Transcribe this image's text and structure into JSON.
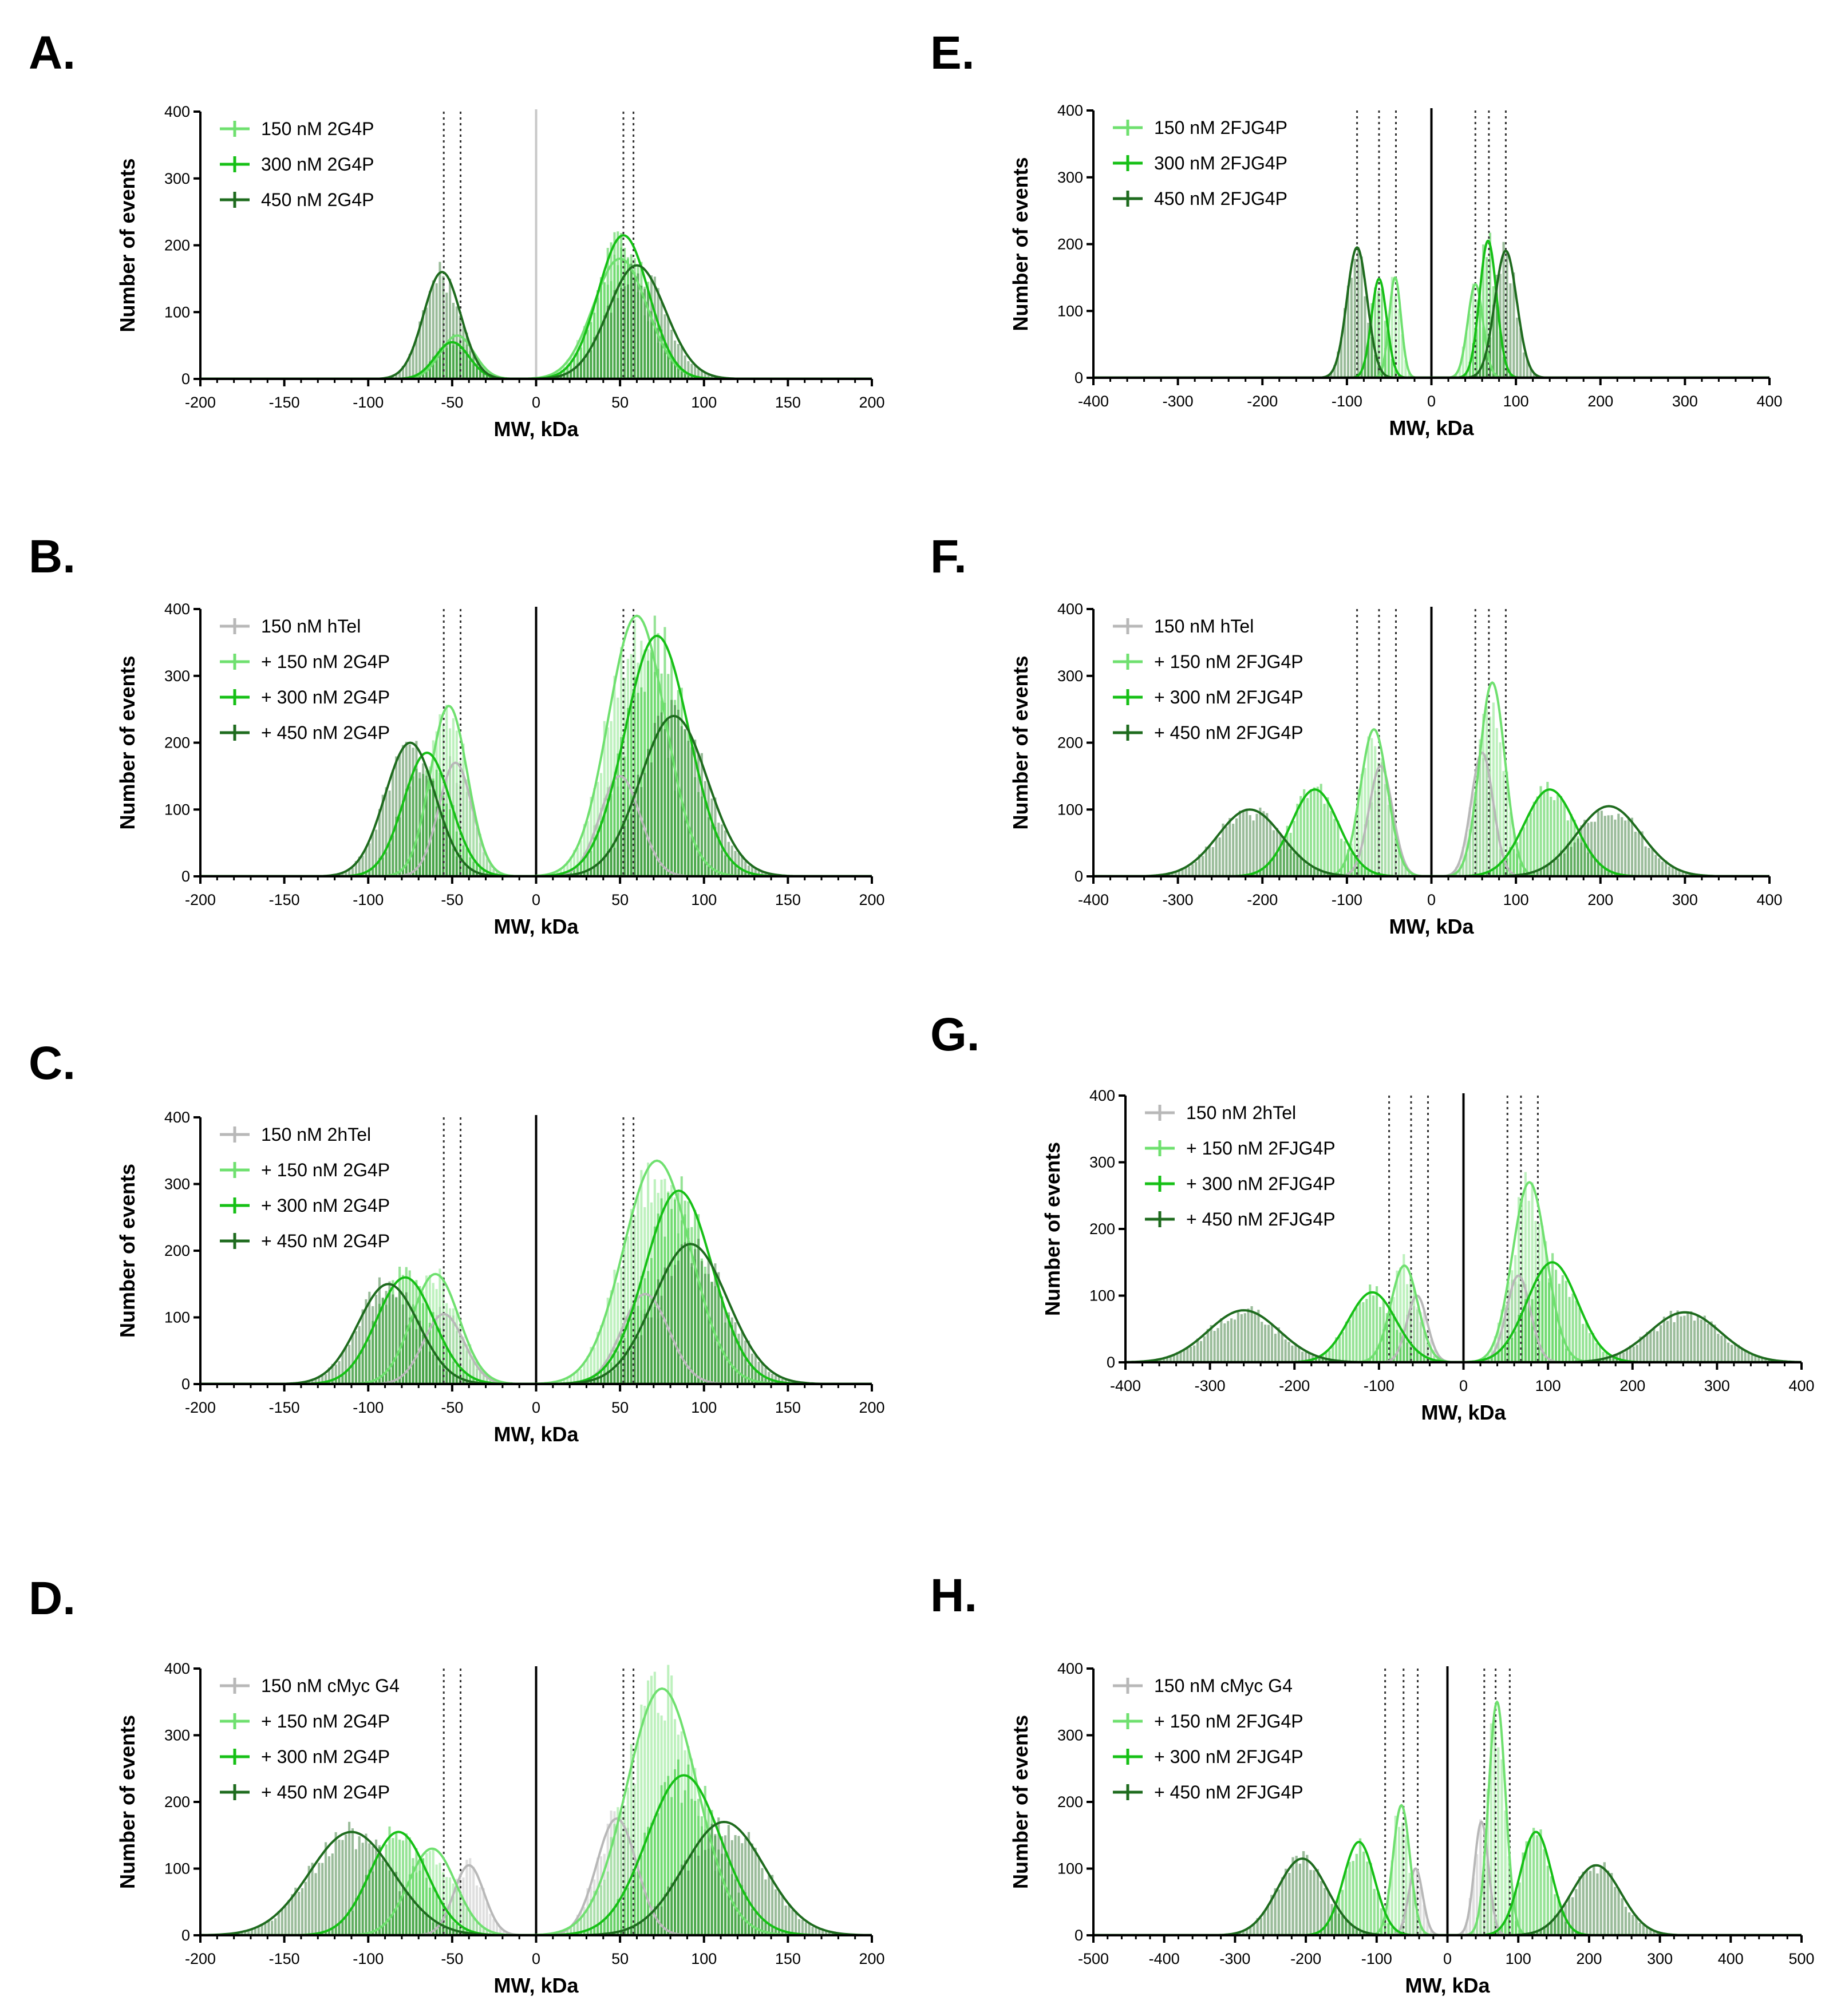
{
  "colors": {
    "gray": "#b8b8b8",
    "light_green": "#6fe06f",
    "green": "#16c016",
    "dark_green": "#1e6b1e",
    "axis": "#000000",
    "guide": "#333333"
  },
  "chart_data": [
    {
      "panel": "A.",
      "type": "histogram",
      "xlabel": "MW, kDa",
      "ylabel": "Number of events",
      "xlim": [
        -200,
        200
      ],
      "ylim": [
        0,
        400
      ],
      "xticks": [
        -200,
        -150,
        -100,
        -50,
        0,
        50,
        100,
        150,
        200
      ],
      "yticks": [
        0,
        100,
        200,
        300,
        400
      ],
      "center_line": "gray",
      "guides": [
        -55,
        -45,
        52,
        58
      ],
      "series": [
        {
          "name": "150 nM 2G4P",
          "color": "light_green",
          "peaks": [
            {
              "mu": -47,
              "sigma": 10,
              "amp": 65
            },
            {
              "mu": 50,
              "sigma": 16,
              "amp": 180
            }
          ]
        },
        {
          "name": "300 nM 2G4P",
          "color": "green",
          "peaks": [
            {
              "mu": -50,
              "sigma": 10,
              "amp": 55
            },
            {
              "mu": 52,
              "sigma": 15,
              "amp": 215
            }
          ]
        },
        {
          "name": "450 nM 2G4P",
          "color": "dark_green",
          "peaks": [
            {
              "mu": -56,
              "sigma": 11,
              "amp": 160
            },
            {
              "mu": 60,
              "sigma": 17,
              "amp": 170
            }
          ]
        }
      ]
    },
    {
      "panel": "B.",
      "type": "histogram",
      "xlabel": "MW, kDa",
      "ylabel": "Number of events",
      "xlim": [
        -200,
        200
      ],
      "ylim": [
        0,
        400
      ],
      "xticks": [
        -200,
        -150,
        -100,
        -50,
        0,
        50,
        100,
        150,
        200
      ],
      "yticks": [
        0,
        100,
        200,
        300,
        400
      ],
      "center_line": "black",
      "guides": [
        -55,
        -45,
        52,
        58
      ],
      "series": [
        {
          "name": "150 nM hTel",
          "color": "gray",
          "peaks": [
            {
              "mu": -48,
              "sigma": 10,
              "amp": 170
            },
            {
              "mu": 50,
              "sigma": 12,
              "amp": 150
            }
          ]
        },
        {
          "name": "+ 150 nM 2G4P",
          "color": "light_green",
          "peaks": [
            {
              "mu": -52,
              "sigma": 11,
              "amp": 255
            },
            {
              "mu": 60,
              "sigma": 17,
              "amp": 390
            }
          ]
        },
        {
          "name": "+ 300 nM 2G4P",
          "color": "green",
          "peaks": [
            {
              "mu": -65,
              "sigma": 14,
              "amp": 185
            },
            {
              "mu": 72,
              "sigma": 19,
              "amp": 360
            }
          ]
        },
        {
          "name": "+ 450 nM 2G4P",
          "color": "dark_green",
          "peaks": [
            {
              "mu": -75,
              "sigma": 15,
              "amp": 200
            },
            {
              "mu": 82,
              "sigma": 20,
              "amp": 240
            }
          ]
        }
      ]
    },
    {
      "panel": "C.",
      "type": "histogram",
      "xlabel": "MW, kDa",
      "ylabel": "Number of events",
      "xlim": [
        -200,
        200
      ],
      "ylim": [
        0,
        400
      ],
      "xticks": [
        -200,
        -150,
        -100,
        -50,
        0,
        50,
        100,
        150,
        200
      ],
      "yticks": [
        0,
        100,
        200,
        300,
        400
      ],
      "center_line": "black",
      "guides": [
        -55,
        -45,
        52,
        58
      ],
      "series": [
        {
          "name": "150 nM 2hTel",
          "color": "gray",
          "peaks": [
            {
              "mu": -55,
              "sigma": 12,
              "amp": 105
            },
            {
              "mu": 65,
              "sigma": 14,
              "amp": 135
            }
          ]
        },
        {
          "name": "+ 150 nM 2G4P",
          "color": "light_green",
          "peaks": [
            {
              "mu": -60,
              "sigma": 14,
              "amp": 165
            },
            {
              "mu": 72,
              "sigma": 20,
              "amp": 335
            }
          ]
        },
        {
          "name": "+ 300 nM 2G4P",
          "color": "green",
          "peaks": [
            {
              "mu": -78,
              "sigma": 17,
              "amp": 160
            },
            {
              "mu": 85,
              "sigma": 20,
              "amp": 290
            }
          ]
        },
        {
          "name": "+ 450 nM 2G4P",
          "color": "dark_green",
          "peaks": [
            {
              "mu": -88,
              "sigma": 18,
              "amp": 150
            },
            {
              "mu": 92,
              "sigma": 22,
              "amp": 210
            }
          ]
        }
      ]
    },
    {
      "panel": "D.",
      "type": "histogram",
      "xlabel": "MW, kDa",
      "ylabel": "Number of events",
      "xlim": [
        -200,
        200
      ],
      "ylim": [
        0,
        400
      ],
      "xticks": [
        -200,
        -150,
        -100,
        -50,
        0,
        50,
        100,
        150,
        200
      ],
      "yticks": [
        0,
        100,
        200,
        300,
        400
      ],
      "center_line": "black",
      "guides": [
        -55,
        -45,
        52,
        58
      ],
      "series": [
        {
          "name": "150 nM cMyc G4",
          "color": "gray",
          "peaks": [
            {
              "mu": -40,
              "sigma": 9,
              "amp": 105
            },
            {
              "mu": 48,
              "sigma": 12,
              "amp": 175
            }
          ]
        },
        {
          "name": "+ 150 nM 2G4P",
          "color": "light_green",
          "peaks": [
            {
              "mu": -62,
              "sigma": 14,
              "amp": 130
            },
            {
              "mu": 75,
              "sigma": 21,
              "amp": 370
            }
          ]
        },
        {
          "name": "+ 300 nM 2G4P",
          "color": "green",
          "peaks": [
            {
              "mu": -82,
              "sigma": 17,
              "amp": 155
            },
            {
              "mu": 88,
              "sigma": 22,
              "amp": 240
            }
          ]
        },
        {
          "name": "+ 450 nM 2G4P",
          "color": "dark_green",
          "peaks": [
            {
              "mu": -110,
              "sigma": 25,
              "amp": 155
            },
            {
              "mu": 112,
              "sigma": 24,
              "amp": 170
            }
          ]
        }
      ]
    },
    {
      "panel": "E.",
      "type": "histogram",
      "xlabel": "MW, kDa",
      "ylabel": "Number of events",
      "xlim": [
        -400,
        400
      ],
      "ylim": [
        0,
        400
      ],
      "xticks": [
        -400,
        -300,
        -200,
        -100,
        0,
        100,
        200,
        300,
        400
      ],
      "yticks": [
        0,
        100,
        200,
        300,
        400
      ],
      "center_line": "black",
      "guides": [
        -88,
        -62,
        -42,
        52,
        68,
        88
      ],
      "series": [
        {
          "name": "150 nM 2FJG4P",
          "color": "light_green",
          "peaks": [
            {
              "mu": -43,
              "sigma": 7,
              "amp": 150
            },
            {
              "mu": 52,
              "sigma": 9,
              "amp": 140
            }
          ]
        },
        {
          "name": "300 nM 2FJG4P",
          "color": "green",
          "peaks": [
            {
              "mu": -62,
              "sigma": 9,
              "amp": 148
            },
            {
              "mu": 67,
              "sigma": 10,
              "amp": 205
            }
          ]
        },
        {
          "name": "450 nM 2FJG4P",
          "color": "dark_green",
          "peaks": [
            {
              "mu": -88,
              "sigma": 12,
              "amp": 195
            },
            {
              "mu": 88,
              "sigma": 13,
              "amp": 190
            }
          ]
        }
      ]
    },
    {
      "panel": "F.",
      "type": "histogram",
      "xlabel": "MW, kDa",
      "ylabel": "Number of events",
      "xlim": [
        -400,
        400
      ],
      "ylim": [
        0,
        400
      ],
      "xticks": [
        -400,
        -300,
        -200,
        -100,
        0,
        100,
        200,
        300,
        400
      ],
      "yticks": [
        0,
        100,
        200,
        300,
        400
      ],
      "center_line": "black",
      "guides": [
        -88,
        -62,
        -42,
        52,
        68,
        88
      ],
      "series": [
        {
          "name": "150 nM hTel",
          "color": "gray",
          "peaks": [
            {
              "mu": -60,
              "sigma": 14,
              "amp": 165
            },
            {
              "mu": 60,
              "sigma": 13,
              "amp": 185
            }
          ]
        },
        {
          "name": "+ 150 nM 2FJG4P",
          "color": "light_green",
          "peaks": [
            {
              "mu": -68,
              "sigma": 16,
              "amp": 220
            },
            {
              "mu": 72,
              "sigma": 15,
              "amp": 290
            }
          ]
        },
        {
          "name": "+ 300 nM 2FJG4P",
          "color": "green",
          "peaks": [
            {
              "mu": -138,
              "sigma": 28,
              "amp": 130
            },
            {
              "mu": 140,
              "sigma": 30,
              "amp": 130
            }
          ]
        },
        {
          "name": "+ 450 nM 2FJG4P",
          "color": "dark_green",
          "peaks": [
            {
              "mu": -215,
              "sigma": 38,
              "amp": 100
            },
            {
              "mu": 210,
              "sigma": 38,
              "amp": 105
            }
          ]
        }
      ]
    },
    {
      "panel": "G.",
      "type": "histogram",
      "xlabel": "MW, kDa",
      "ylabel": "Number of events",
      "xlim": [
        -400,
        400
      ],
      "ylim": [
        0,
        400
      ],
      "xticks": [
        -400,
        -300,
        -200,
        -100,
        0,
        100,
        200,
        300,
        400
      ],
      "yticks": [
        0,
        100,
        200,
        300,
        400
      ],
      "center_line": "black",
      "guides": [
        -88,
        -62,
        -42,
        52,
        68,
        88
      ],
      "series": [
        {
          "name": "150 nM 2hTel",
          "color": "gray",
          "peaks": [
            {
              "mu": -55,
              "sigma": 12,
              "amp": 100
            },
            {
              "mu": 65,
              "sigma": 14,
              "amp": 130
            }
          ]
        },
        {
          "name": "+ 150 nM 2FJG4P",
          "color": "light_green",
          "peaks": [
            {
              "mu": -70,
              "sigma": 16,
              "amp": 145
            },
            {
              "mu": 78,
              "sigma": 20,
              "amp": 270
            }
          ]
        },
        {
          "name": "+ 300 nM 2FJG4P",
          "color": "green",
          "peaks": [
            {
              "mu": -108,
              "sigma": 28,
              "amp": 105
            },
            {
              "mu": 105,
              "sigma": 30,
              "amp": 150
            }
          ]
        },
        {
          "name": "+ 450 nM 2FJG4P",
          "color": "dark_green",
          "peaks": [
            {
              "mu": -260,
              "sigma": 42,
              "amp": 78
            },
            {
              "mu": 262,
              "sigma": 42,
              "amp": 75
            }
          ]
        }
      ]
    },
    {
      "panel": "H.",
      "type": "histogram",
      "xlabel": "MW, kDa",
      "ylabel": "Number of events",
      "xlim": [
        -500,
        500
      ],
      "ylim": [
        0,
        400
      ],
      "xticks": [
        -500,
        -400,
        -300,
        -200,
        -100,
        0,
        100,
        200,
        300,
        400,
        500
      ],
      "yticks": [
        0,
        100,
        200,
        300,
        400
      ],
      "center_line": "black",
      "guides": [
        -88,
        -62,
        -42,
        52,
        68,
        88
      ],
      "series": [
        {
          "name": "150 nM cMyc G4",
          "color": "gray",
          "peaks": [
            {
              "mu": -45,
              "sigma": 10,
              "amp": 100
            },
            {
              "mu": 48,
              "sigma": 10,
              "amp": 170
            }
          ]
        },
        {
          "name": "+ 150 nM 2FJG4P",
          "color": "light_green",
          "peaks": [
            {
              "mu": -65,
              "sigma": 12,
              "amp": 195
            },
            {
              "mu": 70,
              "sigma": 12,
              "amp": 350
            }
          ]
        },
        {
          "name": "+ 300 nM 2FJG4P",
          "color": "green",
          "peaks": [
            {
              "mu": -125,
              "sigma": 22,
              "amp": 140
            },
            {
              "mu": 125,
              "sigma": 22,
              "amp": 155
            }
          ]
        },
        {
          "name": "+ 450 nM 2FJG4P",
          "color": "dark_green",
          "peaks": [
            {
              "mu": -205,
              "sigma": 35,
              "amp": 115
            },
            {
              "mu": 210,
              "sigma": 35,
              "amp": 105
            }
          ]
        }
      ]
    }
  ]
}
